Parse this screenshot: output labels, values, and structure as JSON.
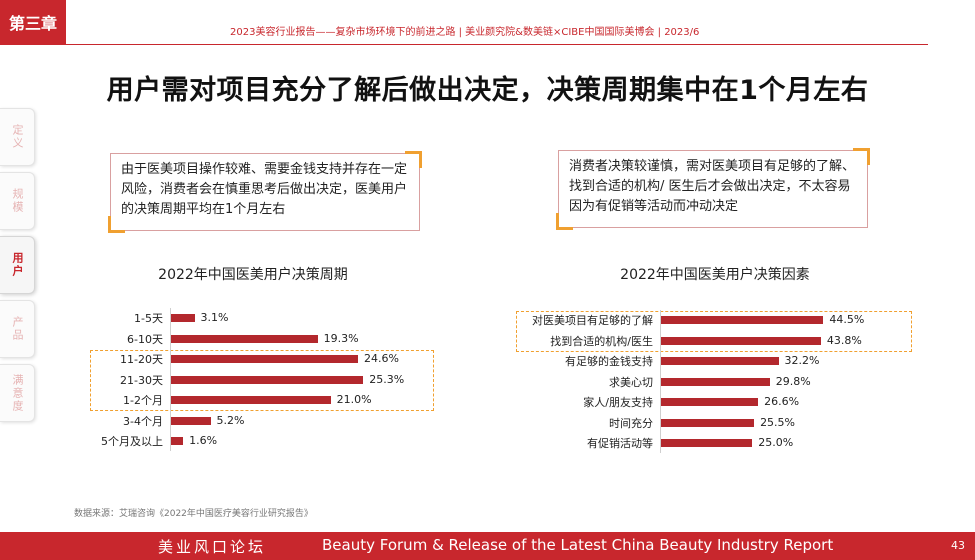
{
  "chapter": "第三章",
  "header": "2023美容行业报告——复杂市场环境下的前进之路  |  美业颜究院&数美链×CIBE中国国际美博会  |  2023/6",
  "title": "用户需对项目充分了解后做出决定，决策周期集中在1个月左右",
  "side_nav": [
    {
      "label": "定义",
      "active": false
    },
    {
      "label": "规模",
      "active": false
    },
    {
      "label": "用户",
      "active": true
    },
    {
      "label": "产品",
      "active": false
    },
    {
      "label": "满意度",
      "active": false
    }
  ],
  "callouts": {
    "left": "由于医美项目操作较难、需要金钱支持并存在一定风险，消费者会在慎重思考后做出决定，医美用户的决策周期平均在1个月左右",
    "right": "消费者决策较谨慎，需对医美项目有足够的了解、找到合适的机构/ 医生后才会做出决定，不太容易因为有促销等活动而冲动决定"
  },
  "chart_data": [
    {
      "type": "bar",
      "title": "2022年中国医美用户决策周期",
      "categories": [
        "1-5天",
        "6-10天",
        "11-20天",
        "21-30天",
        "1-2个月",
        "3-4个月",
        "5个月及以上"
      ],
      "values": [
        3.1,
        19.3,
        24.6,
        25.3,
        21.0,
        5.2,
        1.6
      ],
      "labels": [
        "3.1%",
        "19.3%",
        "24.6%",
        "25.3%",
        "21.0%",
        "5.2%",
        "1.6%"
      ],
      "highlight": [
        2,
        4
      ],
      "color": "#b3282d"
    },
    {
      "type": "bar",
      "title": "2022年中国医美用户决策因素",
      "categories": [
        "对医美项目有足够的了解",
        "找到合适的机构/医生",
        "有足够的金钱支持",
        "求美心切",
        "家人/朋友支持",
        "时间充分",
        "有促销活动等"
      ],
      "values": [
        44.5,
        43.8,
        32.2,
        29.8,
        26.6,
        25.5,
        25.0
      ],
      "labels": [
        "44.5%",
        "43.8%",
        "32.2%",
        "29.8%",
        "26.6%",
        "25.5%",
        "25.0%"
      ],
      "highlight": [
        0,
        1
      ],
      "color": "#b3282d"
    }
  ],
  "source": "数据来源：艾瑞咨询《2022年中国医疗美容行业研究报告》",
  "footer": {
    "cn": "美业风口论坛",
    "en": "Beauty Forum & Release of the Latest China Beauty Industry Report",
    "page": "43"
  }
}
